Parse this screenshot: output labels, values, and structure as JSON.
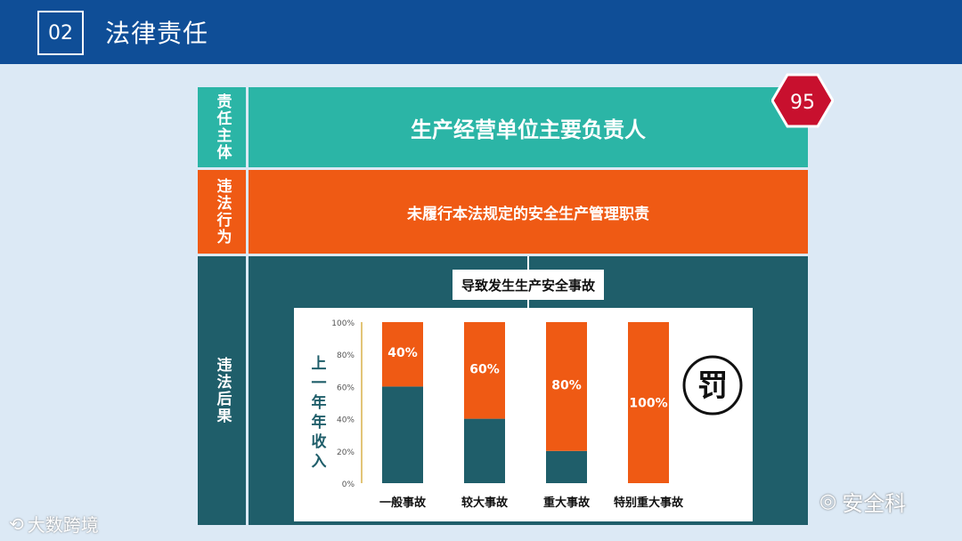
{
  "header": {
    "section_number": "02",
    "title": "法律责任"
  },
  "badge": {
    "number": "95"
  },
  "rows": {
    "subject": {
      "label": "责任主体",
      "content": "生产经营单位主要负责人"
    },
    "behavior": {
      "label": "违法行为",
      "content": "未履行本法规定的安全生产管理职责"
    },
    "consequence": {
      "label": "违法后果",
      "result": "导致发生生产安全事故"
    }
  },
  "chart_data": {
    "type": "bar",
    "ylabel": "上一年年收入",
    "ylim": [
      0,
      100
    ],
    "yticks": [
      "0%",
      "20%",
      "40%",
      "60%",
      "80%",
      "100%"
    ],
    "categories": [
      "一般事故",
      "较大事故",
      "重大事故",
      "特别重大事故"
    ],
    "series": [
      {
        "values": [
          60,
          40,
          20,
          0
        ],
        "color": "#1f5e6a"
      },
      {
        "values": [
          40,
          60,
          80,
          100
        ],
        "color": "#ef5a14"
      }
    ],
    "data_labels": [
      "40%",
      "60%",
      "80%",
      "100%"
    ]
  },
  "stamp": {
    "char": "罚"
  },
  "watermarks": {
    "left": "大数跨境",
    "right": "安全科"
  },
  "colors": {
    "header": "#0f4e97",
    "teal": "#2bb5a6",
    "orange": "#ef5a14",
    "dark": "#1f5e6a",
    "badge": "#c8102e"
  }
}
